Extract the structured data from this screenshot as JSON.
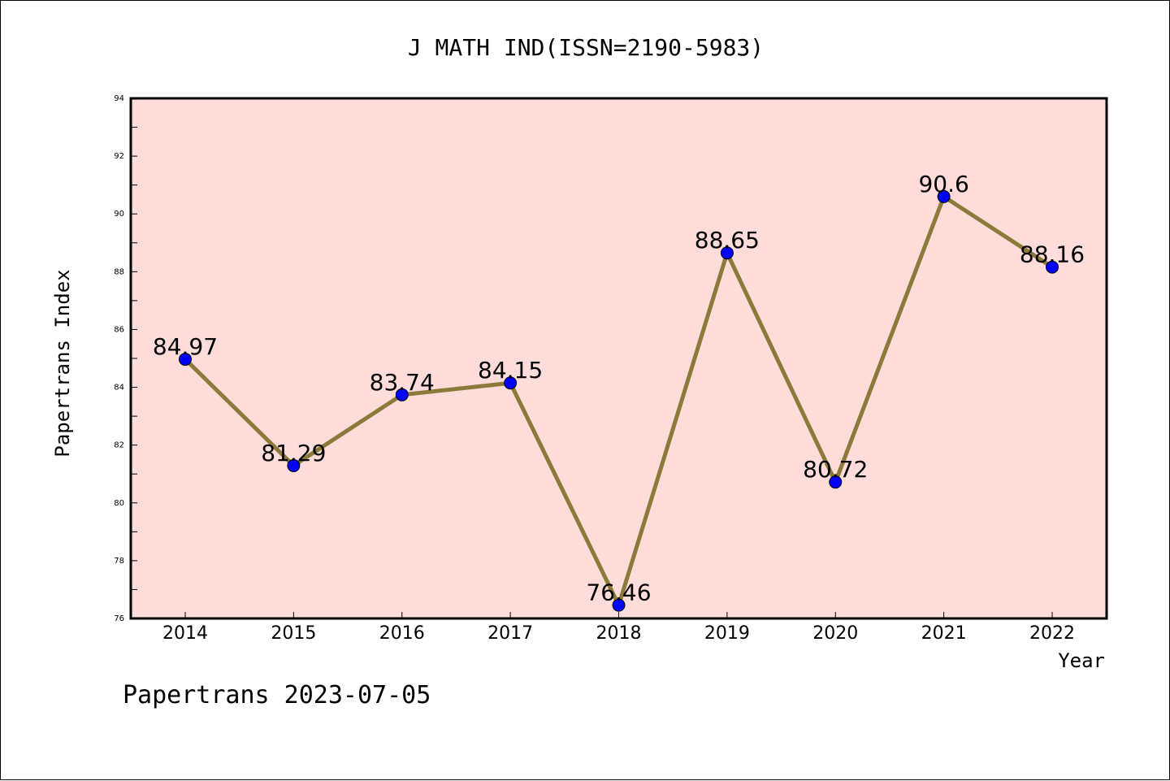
{
  "chart_data": {
    "type": "line",
    "title": "J MATH IND(ISSN=2190-5983)",
    "xlabel": "Year",
    "ylabel": "Papertrans Index",
    "footer": "Papertrans 2023-07-05",
    "categories": [
      "2014",
      "2015",
      "2016",
      "2017",
      "2018",
      "2019",
      "2020",
      "2021",
      "2022"
    ],
    "values": [
      84.97,
      81.29,
      83.74,
      84.15,
      76.46,
      88.65,
      80.72,
      90.6,
      88.16
    ],
    "data_labels": [
      "84.97",
      "81.29",
      "83.74",
      "84.15",
      "76.46",
      "88.65",
      "80.72",
      "90.6",
      "88.16"
    ],
    "ylim": [
      76,
      94
    ],
    "yticks": [
      "76",
      "78",
      "80",
      "82",
      "84",
      "86",
      "88",
      "90",
      "92",
      "94"
    ],
    "grid": false,
    "colors": {
      "plot_background": "#fddcda",
      "line": "#8c7a3a",
      "marker": "#0000ff"
    }
  }
}
